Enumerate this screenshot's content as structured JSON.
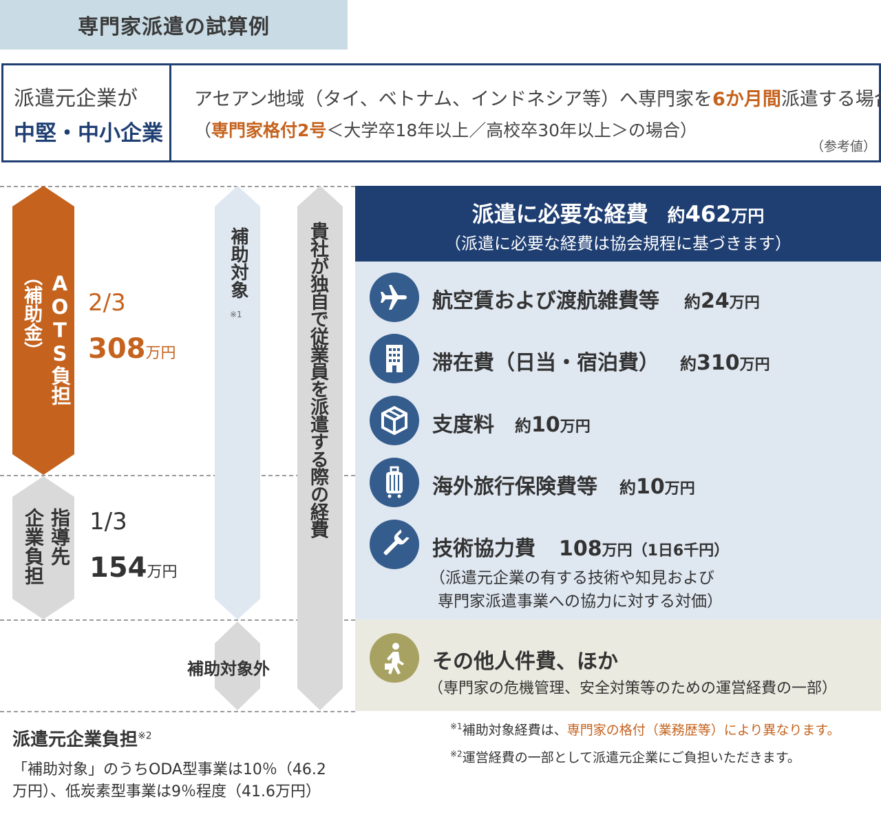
{
  "title": "専門家派遣の試算例",
  "condition": {
    "company_label": "派遣元企業が",
    "company_type": "中堅・中小企業",
    "line1_pre": "アセアン地域（タイ、ベトナム、インドネシア等）へ専門家を",
    "line1_highlight": "6か月間",
    "line1_post": "派遣する場合",
    "line2_open": "（",
    "line2_highlight": "専門家格付2号",
    "line2_post": "＜大学卒18年以上／高校卒30年以上＞の場合）",
    "note": "（参考値）"
  },
  "aots": {
    "label": "AOTS負担",
    "sub": "（補助金）",
    "ratio": "2/3",
    "amount": "308",
    "unit": "万円",
    "color": "#c5621d"
  },
  "company_share": {
    "label1": "指導先",
    "label2": "企業負担",
    "ratio": "1/3",
    "amount": "154",
    "unit": "万円",
    "color": "#d9d9d9"
  },
  "subsidy_target": {
    "label": "補助対象",
    "note": "※1",
    "color": "#dfe7f1"
  },
  "non_target": {
    "label": "補助対象外"
  },
  "own_cost": {
    "label": "貴社が独自で従業員を派遣する際の経費",
    "color": "#d9d9d9"
  },
  "header": {
    "title": "派遣に必要な経費",
    "approx": "約",
    "amount": "462",
    "unit": "万円",
    "sub": "（派遣に必要な経費は協会規程に基づきます）",
    "color": "#1f3f73"
  },
  "items": [
    {
      "icon": "airplane-icon",
      "label": "航空賃および渡航雑費等",
      "approx": "約",
      "amount": "24",
      "unit": "万円"
    },
    {
      "icon": "building-icon",
      "label": "滞在費（日当・宿泊費）",
      "approx": "約",
      "amount": "310",
      "unit": "万円"
    },
    {
      "icon": "package-icon",
      "label": "支度料",
      "approx": "約",
      "amount": "10",
      "unit": "万円"
    },
    {
      "icon": "suitcase-icon",
      "label": "海外旅行保険費等",
      "approx": "約",
      "amount": "10",
      "unit": "万円"
    },
    {
      "icon": "wrench-icon",
      "label": "技術協力費",
      "approx": "",
      "amount": "108",
      "unit": "万円（1日6千円）"
    }
  ],
  "tech_note_1": "（派遣元企業の有する技術や知見および",
  "tech_note_2": "専門家派遣事業への協力に対する対価）",
  "other": {
    "icon": "walking-person-icon",
    "label": "その他人件費、ほか",
    "sub": "（専門家の危機管理、安全対策等のための運営経費の一部）",
    "color": "#eaeae0"
  },
  "footer_left": {
    "title": "派遣元企業負担",
    "title_note": "※2",
    "line1": "「補助対象」のうちODA型事業は10％（46.2",
    "line2": "万円）、低炭素型事業は9％程度（41.6万円）"
  },
  "notes": [
    {
      "mark": "※1",
      "pre": "補助対象経費は、",
      "highlight": "専門家の格付（業務歴等）により異なります。"
    },
    {
      "mark": "※2",
      "text": "運営経費の一部として派遣元企業にご負担いただきます。"
    }
  ]
}
